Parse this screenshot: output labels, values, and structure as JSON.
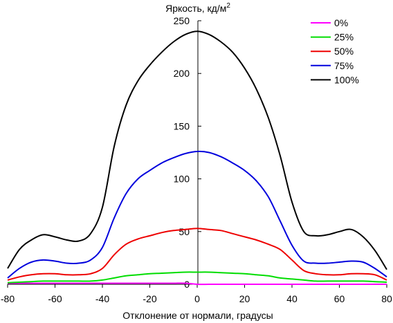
{
  "chart_data": {
    "type": "line",
    "ylabel": "Яркость, кд/м",
    "ylabel_sup": "2",
    "xlabel": "Отклонение от нормали, градусы",
    "xlim": [
      -80,
      80
    ],
    "ylim": [
      0,
      250
    ],
    "xticks": [
      -80,
      -60,
      -40,
      -20,
      0,
      20,
      40,
      60,
      80
    ],
    "yticks": [
      0,
      50,
      100,
      150,
      200,
      250
    ],
    "grid": false,
    "legend_position": "top-right",
    "x": [
      -80,
      -75,
      -70,
      -65,
      -60,
      -55,
      -50,
      -45,
      -40,
      -35,
      -30,
      -25,
      -20,
      -15,
      -10,
      -5,
      0,
      5,
      10,
      15,
      20,
      25,
      30,
      35,
      40,
      45,
      50,
      55,
      60,
      65,
      70,
      75,
      80
    ],
    "series": [
      {
        "name": "0%",
        "color": "#ff00ff",
        "values": [
          1,
          1,
          1,
          1,
          1,
          1,
          1,
          1,
          1,
          1,
          1,
          1,
          1,
          1,
          1,
          1,
          0,
          0,
          0,
          0,
          0,
          0,
          0,
          0,
          0,
          0,
          0,
          0,
          0,
          0,
          0,
          0,
          0
        ]
      },
      {
        "name": "25%",
        "color": "#00dd00",
        "values": [
          1.5,
          2,
          2.5,
          3,
          3,
          3,
          3,
          3,
          4,
          6,
          8,
          9,
          10,
          10.5,
          11,
          11.5,
          11.5,
          11.5,
          11,
          10.5,
          10,
          9,
          8,
          6,
          5,
          4,
          3,
          3,
          3,
          3,
          3,
          2.5,
          2
        ]
      },
      {
        "name": "50%",
        "color": "#ee0000",
        "values": [
          4,
          7,
          9,
          10,
          10,
          9,
          9,
          10,
          15,
          28,
          38,
          43,
          46,
          49,
          51,
          52,
          53,
          52,
          51,
          48,
          45,
          42,
          38,
          33,
          23,
          13,
          10,
          9,
          9,
          10,
          10,
          9,
          4
        ]
      },
      {
        "name": "75%",
        "color": "#0000dd",
        "values": [
          6,
          15,
          21,
          23,
          22,
          20,
          20,
          23,
          35,
          63,
          86,
          100,
          108,
          115,
          120,
          124,
          126,
          125,
          121,
          115,
          108,
          98,
          83,
          60,
          37,
          22,
          20,
          20,
          21,
          22,
          21,
          15,
          7
        ]
      },
      {
        "name": "100%",
        "color": "#000000",
        "values": [
          15,
          33,
          42,
          47,
          45,
          42,
          41,
          48,
          73,
          131,
          170,
          193,
          208,
          220,
          230,
          237,
          240,
          237,
          230,
          220,
          205,
          185,
          158,
          122,
          78,
          50,
          46,
          47,
          50,
          52,
          45,
          32,
          14
        ]
      }
    ]
  }
}
